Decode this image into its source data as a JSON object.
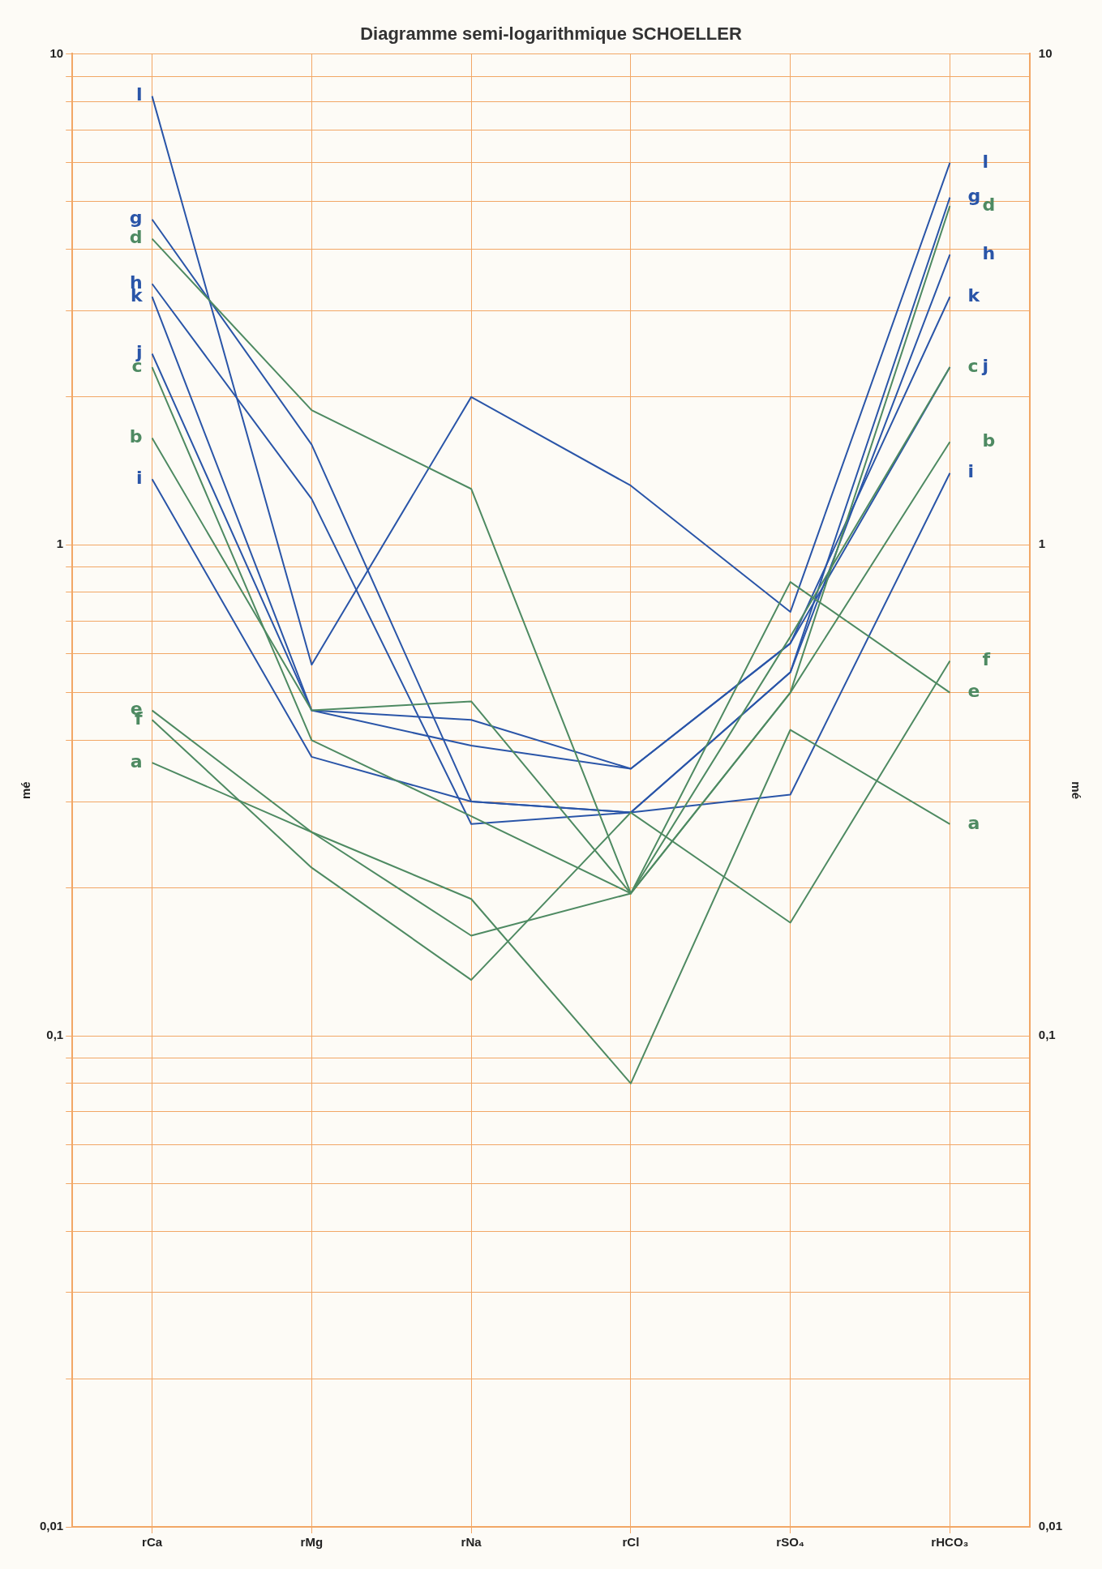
{
  "chart_data": {
    "type": "line",
    "title": "Diagramme semi-logarithmique SCHOELLER",
    "ylabel": "mé",
    "y2label": "mé",
    "categories": [
      "rCa",
      "rMg",
      "rNa",
      "rCl",
      "rSO₄",
      "rHCO₃"
    ],
    "series": [
      {
        "name": "a",
        "color": "#4e8a62",
        "values": [
          0.36,
          0.26,
          0.19,
          0.08,
          0.42,
          0.27
        ]
      },
      {
        "name": "b",
        "color": "#4e8a62",
        "values": [
          1.65,
          0.46,
          0.48,
          0.195,
          0.5,
          1.62
        ]
      },
      {
        "name": "c",
        "color": "#4e8a62",
        "values": [
          2.3,
          0.4,
          0.28,
          0.195,
          0.65,
          2.3
        ]
      },
      {
        "name": "d",
        "color": "#4e8a62",
        "values": [
          4.2,
          1.88,
          1.3,
          0.195,
          0.5,
          4.9
        ]
      },
      {
        "name": "e",
        "color": "#4e8a62",
        "values": [
          0.46,
          0.26,
          0.16,
          0.195,
          0.84,
          0.5
        ]
      },
      {
        "name": "f",
        "color": "#4e8a62",
        "values": [
          0.44,
          0.22,
          0.13,
          0.285,
          0.17,
          0.58
        ]
      },
      {
        "name": "g",
        "color": "#2a55a8",
        "values": [
          4.6,
          1.6,
          0.3,
          0.285,
          0.55,
          5.1
        ]
      },
      {
        "name": "h",
        "color": "#2a55a8",
        "values": [
          3.4,
          1.24,
          0.27,
          0.285,
          0.55,
          3.9
        ]
      },
      {
        "name": "i",
        "color": "#2a55a8",
        "values": [
          1.36,
          0.37,
          0.3,
          0.285,
          0.31,
          1.4
        ]
      },
      {
        "name": "j",
        "color": "#2a55a8",
        "values": [
          2.45,
          0.46,
          0.44,
          0.35,
          0.63,
          2.3
        ]
      },
      {
        "name": "k",
        "color": "#2a55a8",
        "values": [
          3.2,
          0.46,
          0.39,
          0.35,
          0.63,
          3.2
        ]
      },
      {
        "name": "l",
        "color": "#2a55a8",
        "values": [
          8.2,
          0.57,
          2.0,
          1.32,
          0.73,
          6.0
        ]
      }
    ],
    "log": true,
    "ylim": [
      0.01,
      10
    ],
    "yticks": [
      {
        "value": 0.01,
        "label": "0,01"
      },
      {
        "value": 0.02,
        "label": null
      },
      {
        "value": 0.03,
        "label": null
      },
      {
        "value": 0.04,
        "label": null
      },
      {
        "value": 0.05,
        "label": null
      },
      {
        "value": 0.06,
        "label": null
      },
      {
        "value": 0.07,
        "label": null
      },
      {
        "value": 0.08,
        "label": null
      },
      {
        "value": 0.09,
        "label": null
      },
      {
        "value": 0.1,
        "label": "0,1"
      },
      {
        "value": 0.2,
        "label": null
      },
      {
        "value": 0.3,
        "label": null
      },
      {
        "value": 0.4,
        "label": null
      },
      {
        "value": 0.5,
        "label": null
      },
      {
        "value": 0.6,
        "label": null
      },
      {
        "value": 0.7,
        "label": null
      },
      {
        "value": 0.8,
        "label": null
      },
      {
        "value": 0.9,
        "label": null
      },
      {
        "value": 1,
        "label": "1"
      },
      {
        "value": 2,
        "label": null
      },
      {
        "value": 3,
        "label": null
      },
      {
        "value": 4,
        "label": null
      },
      {
        "value": 5,
        "label": null
      },
      {
        "value": 6,
        "label": null
      },
      {
        "value": 7,
        "label": null
      },
      {
        "value": 8,
        "label": null
      },
      {
        "value": 9,
        "label": null
      },
      {
        "value": 10,
        "label": "10"
      }
    ],
    "grid": true,
    "legend": false,
    "marker": "none"
  }
}
